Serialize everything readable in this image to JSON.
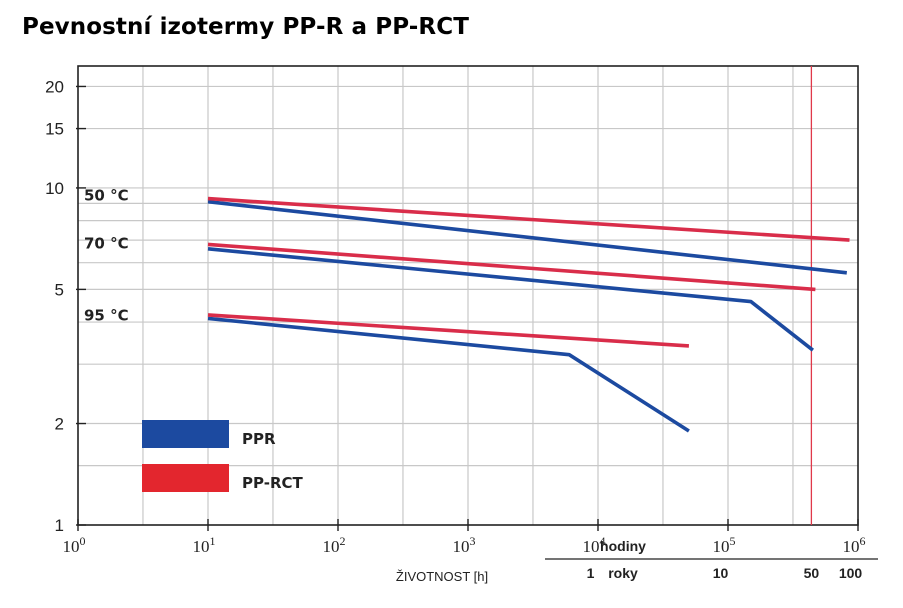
{
  "title": "Pevnostní izotermy PP-R a PP-RCT",
  "chart_data": {
    "type": "line",
    "title": "Pevnostní izotermy PP-R a PP-RCT",
    "xscale": "log",
    "yscale": "log",
    "xlim": [
      1,
      1000000
    ],
    "ylim": [
      1,
      23
    ],
    "grid": true,
    "xlabel": "ŽIVOTNOST [h]",
    "ylabel": "",
    "y_ticks": [
      {
        "value": 1,
        "label": "1"
      },
      {
        "value": 2,
        "label": "2"
      },
      {
        "value": 5,
        "label": "5"
      },
      {
        "value": 10,
        "label": "10"
      },
      {
        "value": 15,
        "label": "15"
      },
      {
        "value": 20,
        "label": "20"
      }
    ],
    "x_ticks": [
      {
        "value": 1,
        "base": "10",
        "exp": "0"
      },
      {
        "value": 10,
        "base": "10",
        "exp": "1"
      },
      {
        "value": 100,
        "base": "10",
        "exp": "2"
      },
      {
        "value": 1000,
        "base": "10",
        "exp": "3"
      },
      {
        "value": 10000,
        "base": "10",
        "exp": "4"
      },
      {
        "value": 100000,
        "base": "10",
        "exp": "5"
      },
      {
        "value": 1000000,
        "base": "10",
        "exp": "6"
      }
    ],
    "hours_label": "hodiny",
    "years_label": "roky",
    "years_ticks": [
      {
        "value": 8760,
        "label": "1",
        "highlight": false
      },
      {
        "value": 87600,
        "label": "10",
        "highlight": false
      },
      {
        "value": 438000,
        "label": "50",
        "highlight": true
      },
      {
        "value": 876000,
        "label": "100",
        "highlight": false
      }
    ],
    "highlight_x": 438000,
    "annotations": [
      {
        "text": "50 °C",
        "y": 9.3
      },
      {
        "text": "70 °C",
        "y": 6.7
      },
      {
        "text": "95 °C",
        "y": 4.1
      }
    ],
    "legend": {
      "placement": "bottom-left",
      "entries": [
        {
          "label": "PPR",
          "color": "#1c4aa0"
        },
        {
          "label": "PP-RCT",
          "color": "#e3262e"
        }
      ]
    },
    "series": [
      {
        "group": "PPR",
        "color": "#1c4aa0",
        "points": [
          [
            10,
            9.1
          ],
          [
            820000,
            5.6
          ]
        ]
      },
      {
        "group": "PP-RCT",
        "color": "#d92d4a",
        "points": [
          [
            10,
            9.3
          ],
          [
            860000,
            7.0
          ]
        ]
      },
      {
        "group": "PPR",
        "color": "#1c4aa0",
        "points": [
          [
            10,
            6.6
          ],
          [
            150000,
            4.6
          ],
          [
            450000,
            3.3
          ]
        ]
      },
      {
        "group": "PP-RCT",
        "color": "#d92d4a",
        "points": [
          [
            10,
            6.8
          ],
          [
            470000,
            5.0
          ]
        ]
      },
      {
        "group": "PPR",
        "color": "#1c4aa0",
        "points": [
          [
            10,
            4.1
          ],
          [
            6000,
            3.2
          ],
          [
            50000,
            1.9
          ]
        ]
      },
      {
        "group": "PP-RCT",
        "color": "#d92d4a",
        "points": [
          [
            10,
            4.2
          ],
          [
            50000,
            3.4
          ]
        ]
      }
    ]
  }
}
